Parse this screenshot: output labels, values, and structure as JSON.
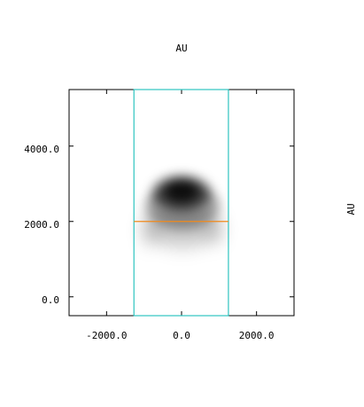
{
  "chart_data": {
    "type": "image",
    "title": "AU",
    "colorbar_label": "AU",
    "xlim": [
      -3000,
      3000
    ],
    "ylim": [
      -500,
      5500
    ],
    "xticks": [
      {
        "value": -2000,
        "label": "-2000.0"
      },
      {
        "value": 0,
        "label": "0.0"
      },
      {
        "value": 2000,
        "label": "2000.0"
      }
    ],
    "yticks": [
      {
        "value": 0,
        "label": "0.0"
      },
      {
        "value": 2000,
        "label": "2000.0"
      },
      {
        "value": 4000,
        "label": "4000.0"
      }
    ],
    "box": {
      "x": [
        -1270,
        1250
      ],
      "color": "#2ec4c0"
    },
    "hline": {
      "y": 2000,
      "color": "#f08a1c"
    }
  }
}
